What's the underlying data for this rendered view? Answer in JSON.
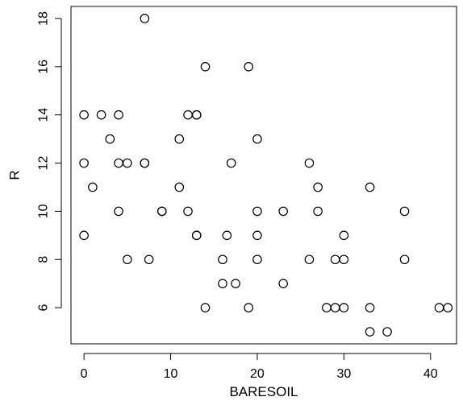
{
  "chart_data": {
    "type": "scatter",
    "title": "",
    "xlabel": "BARESOIL",
    "ylabel": "R",
    "xlim": [
      -1.5,
      43
    ],
    "ylim": [
      4.5,
      18.5
    ],
    "xticks": [
      0,
      10,
      20,
      30,
      40
    ],
    "yticks": [
      6,
      8,
      10,
      12,
      14,
      16,
      18
    ],
    "grid": false,
    "marker": "open-circle",
    "marker_color": "#000000",
    "points": [
      {
        "x": 0,
        "y": 14
      },
      {
        "x": 0,
        "y": 12
      },
      {
        "x": 0,
        "y": 9
      },
      {
        "x": 1,
        "y": 11
      },
      {
        "x": 2,
        "y": 14
      },
      {
        "x": 3,
        "y": 13
      },
      {
        "x": 4,
        "y": 14
      },
      {
        "x": 4,
        "y": 12
      },
      {
        "x": 4,
        "y": 10
      },
      {
        "x": 5,
        "y": 12
      },
      {
        "x": 5,
        "y": 8
      },
      {
        "x": 7,
        "y": 18
      },
      {
        "x": 7,
        "y": 12
      },
      {
        "x": 7,
        "y": 12
      },
      {
        "x": 7.5,
        "y": 8
      },
      {
        "x": 9,
        "y": 10
      },
      {
        "x": 9,
        "y": 10
      },
      {
        "x": 11,
        "y": 13
      },
      {
        "x": 11,
        "y": 11
      },
      {
        "x": 12,
        "y": 14
      },
      {
        "x": 12,
        "y": 10
      },
      {
        "x": 13,
        "y": 14
      },
      {
        "x": 13,
        "y": 14
      },
      {
        "x": 13,
        "y": 9
      },
      {
        "x": 13,
        "y": 9
      },
      {
        "x": 14,
        "y": 16
      },
      {
        "x": 14,
        "y": 6
      },
      {
        "x": 16,
        "y": 8
      },
      {
        "x": 16,
        "y": 7
      },
      {
        "x": 16.5,
        "y": 9
      },
      {
        "x": 17,
        "y": 12
      },
      {
        "x": 17.5,
        "y": 7
      },
      {
        "x": 19,
        "y": 16
      },
      {
        "x": 19,
        "y": 6
      },
      {
        "x": 20,
        "y": 13
      },
      {
        "x": 20,
        "y": 10
      },
      {
        "x": 20,
        "y": 9
      },
      {
        "x": 20,
        "y": 8
      },
      {
        "x": 23,
        "y": 10
      },
      {
        "x": 23,
        "y": 7
      },
      {
        "x": 26,
        "y": 12
      },
      {
        "x": 26,
        "y": 8
      },
      {
        "x": 27,
        "y": 11
      },
      {
        "x": 27,
        "y": 10
      },
      {
        "x": 28,
        "y": 6
      },
      {
        "x": 29,
        "y": 8
      },
      {
        "x": 29,
        "y": 6
      },
      {
        "x": 30,
        "y": 9
      },
      {
        "x": 30,
        "y": 8
      },
      {
        "x": 30,
        "y": 6
      },
      {
        "x": 33,
        "y": 11
      },
      {
        "x": 33,
        "y": 6
      },
      {
        "x": 33,
        "y": 5
      },
      {
        "x": 35,
        "y": 5
      },
      {
        "x": 37,
        "y": 10
      },
      {
        "x": 37,
        "y": 8
      },
      {
        "x": 41,
        "y": 6
      },
      {
        "x": 42,
        "y": 6
      }
    ]
  }
}
